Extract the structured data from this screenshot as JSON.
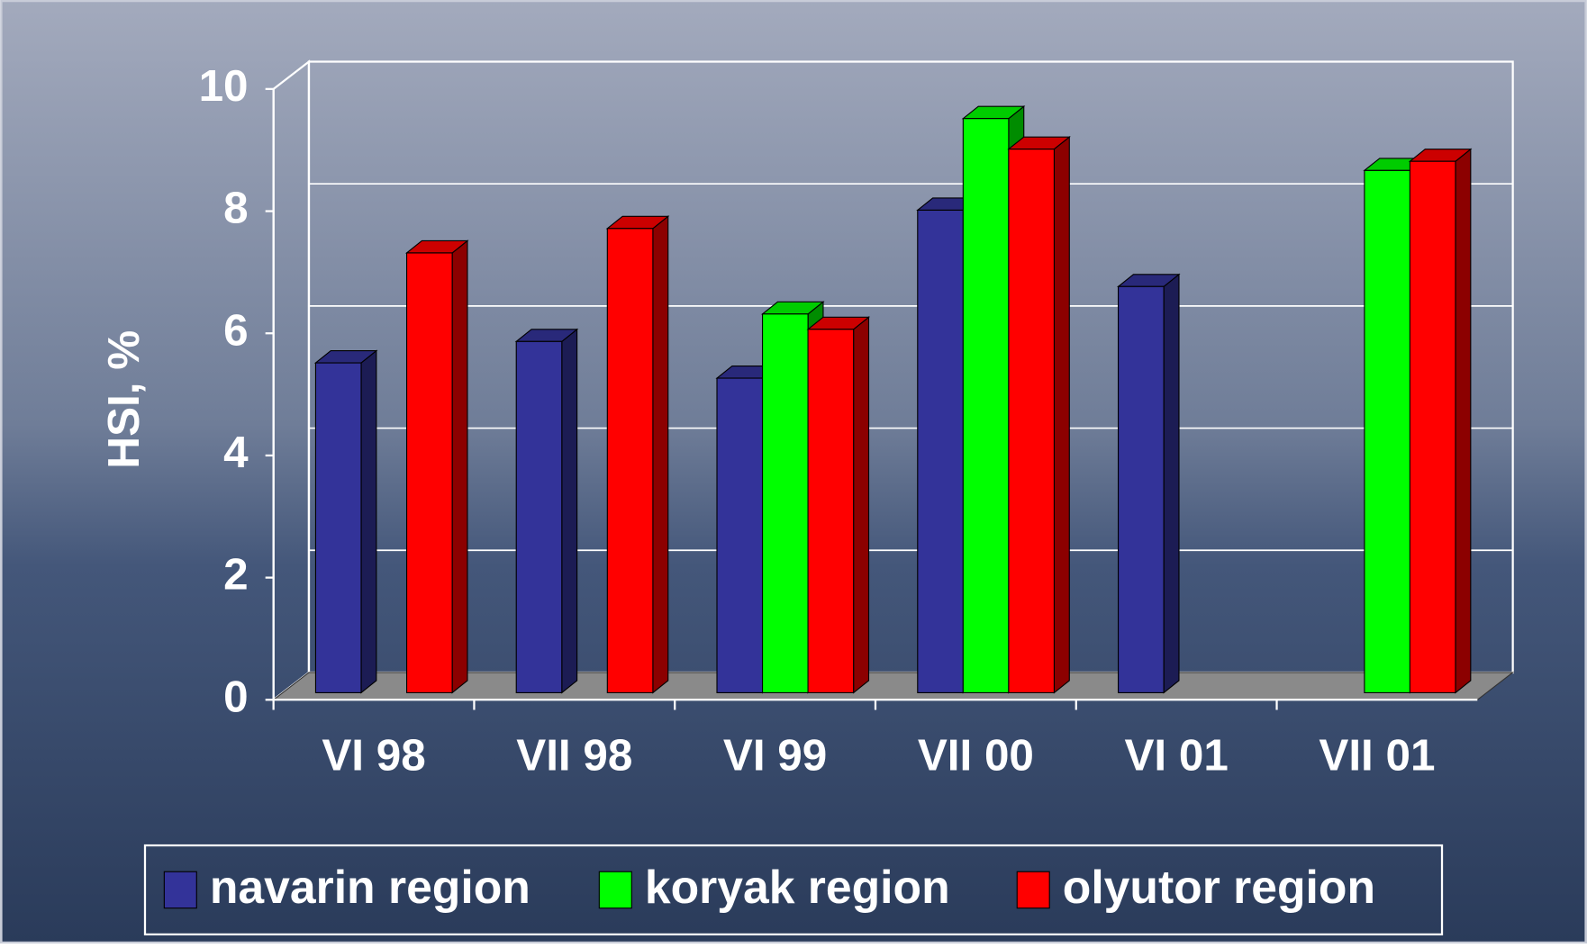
{
  "chart_data": {
    "type": "bar3d",
    "y_label": "HSI, %",
    "categories": [
      "VI 98",
      "VII 98",
      "VI 99",
      "VII 00",
      "VI 01",
      "VII 01"
    ],
    "series": [
      {
        "name": "navarin region",
        "color": "#333399",
        "values": [
          5.4,
          5.75,
          5.15,
          7.9,
          6.65,
          null
        ]
      },
      {
        "name": "koryak region",
        "color": "#00ff00",
        "values": [
          null,
          null,
          6.2,
          9.4,
          null,
          8.55
        ]
      },
      {
        "name": "olyutor region",
        "color": "#ff0000",
        "values": [
          7.2,
          7.6,
          5.95,
          8.9,
          null,
          8.7
        ]
      }
    ],
    "ylim": [
      0,
      10
    ],
    "yticks": [
      0,
      2,
      4,
      6,
      8,
      10
    ],
    "grid": true,
    "legend": "bottom"
  }
}
